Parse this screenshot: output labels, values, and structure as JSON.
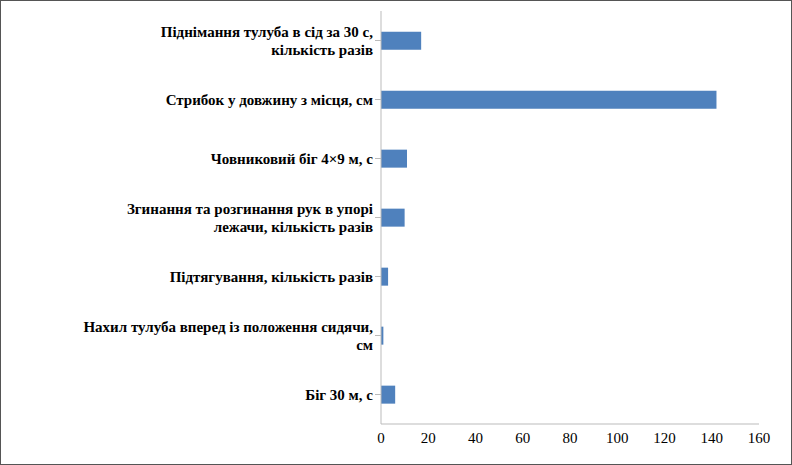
{
  "chart_data": {
    "type": "bar",
    "orientation": "horizontal",
    "categories": [
      "Піднімання тулуба в сід за 30 с, кількість разів",
      "Стрибок у довжину з місця, см",
      "Човниковий біг 4×9 м, с",
      "Згинання та розгинання рук в упорі лежачи, кількість разів",
      "Підтягування, кількість разів",
      "Нахил тулуба вперед із положення сидячи, см",
      "Біг 30 м, с"
    ],
    "values": [
      17,
      142,
      11,
      10,
      3,
      1,
      6
    ],
    "color": "#4f81bd",
    "xlim": [
      0,
      160
    ],
    "xticks": [
      0,
      20,
      40,
      60,
      80,
      100,
      120,
      140,
      160
    ],
    "grid": false
  }
}
